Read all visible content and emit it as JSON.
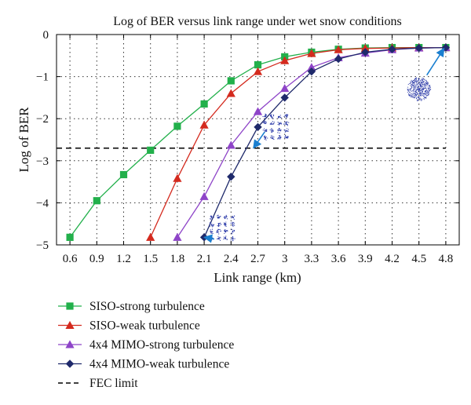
{
  "chart_data": {
    "type": "line",
    "title": "Log of BER versus link range under wet snow conditions",
    "xlabel": "Link range (km)",
    "ylabel": "Log of BER",
    "xlim": [
      0.45,
      4.95
    ],
    "ylim": [
      -5,
      0
    ],
    "x_ticks": [
      0.6,
      0.9,
      1.2,
      1.5,
      1.8,
      2.1,
      2.4,
      2.7,
      3,
      3.3,
      3.6,
      3.9,
      4.2,
      4.5,
      4.8
    ],
    "x_tick_labels": [
      "0.6",
      "0.9",
      "1.2",
      "1.5",
      "1.8",
      "2.1",
      "2.4",
      "2.7",
      "3",
      "3.3",
      "3.6",
      "3.9",
      "4.2",
      "4.5",
      "4.8"
    ],
    "y_ticks": [
      0,
      -1,
      -2,
      -3,
      -4,
      -5
    ],
    "y_tick_labels": [
      "0",
      "−1",
      "−2",
      "−3",
      "−4",
      "−5"
    ],
    "grid": true,
    "legend_position": "below-left",
    "series": [
      {
        "name": "SISO-strong turbulence",
        "color": "#22b04b",
        "marker": "square",
        "x": [
          0.6,
          0.9,
          1.2,
          1.5,
          1.8,
          2.1,
          2.4,
          2.7,
          3,
          3.3,
          3.6,
          3.9,
          4.2,
          4.5,
          4.8
        ],
        "y": [
          -4.82,
          -3.95,
          -3.33,
          -2.75,
          -2.18,
          -1.65,
          -1.1,
          -0.72,
          -0.53,
          -0.42,
          -0.35,
          -0.32,
          -0.31,
          -0.31,
          -0.31
        ]
      },
      {
        "name": "SISO-weak turbulence",
        "color": "#d42a1e",
        "marker": "triangle",
        "x": [
          1.5,
          1.8,
          2.1,
          2.4,
          2.7,
          3,
          3.3,
          3.6,
          3.9,
          4.2,
          4.5,
          4.8
        ],
        "y": [
          -4.82,
          -3.42,
          -2.15,
          -1.4,
          -0.88,
          -0.62,
          -0.45,
          -0.36,
          -0.33,
          -0.32,
          -0.31,
          -0.31
        ]
      },
      {
        "name": "4x4 MIMO-strong turbulence",
        "color": "#8e44c8",
        "marker": "triangle",
        "x": [
          1.8,
          2.1,
          2.4,
          2.7,
          3,
          3.3,
          3.6,
          3.9,
          4.2,
          4.5,
          4.8
        ],
        "y": [
          -4.82,
          -3.85,
          -2.63,
          -1.83,
          -1.28,
          -0.78,
          -0.55,
          -0.44,
          -0.36,
          -0.32,
          -0.31
        ]
      },
      {
        "name": "4x4 MIMO-weak turbulence",
        "color": "#1f2a6b",
        "marker": "diamond",
        "x": [
          2.1,
          2.4,
          2.7,
          3,
          3.3,
          3.6,
          3.9,
          4.2,
          4.5,
          4.8
        ],
        "y": [
          -4.82,
          -3.38,
          -2.2,
          -1.5,
          -0.88,
          -0.58,
          -0.42,
          -0.35,
          -0.32,
          -0.31
        ]
      },
      {
        "name": "FEC limit",
        "color": "#000000",
        "style": "dashed",
        "x": [
          0.45,
          4.8
        ],
        "y": [
          -2.7,
          -2.7
        ]
      }
    ],
    "annotations": [
      {
        "type": "constellation-inset",
        "grid": "4x4",
        "anchor": [
          2.3,
          -4.6
        ],
        "points_to": [
          2.1,
          -4.82
        ]
      },
      {
        "type": "constellation-inset",
        "grid": "4x4",
        "anchor": [
          2.9,
          -2.2
        ],
        "points_to": [
          2.65,
          -2.7
        ]
      },
      {
        "type": "constellation-inset",
        "grid": "scattered",
        "anchor": [
          4.5,
          -1.3
        ],
        "points_to": [
          4.78,
          -0.33
        ]
      }
    ]
  }
}
